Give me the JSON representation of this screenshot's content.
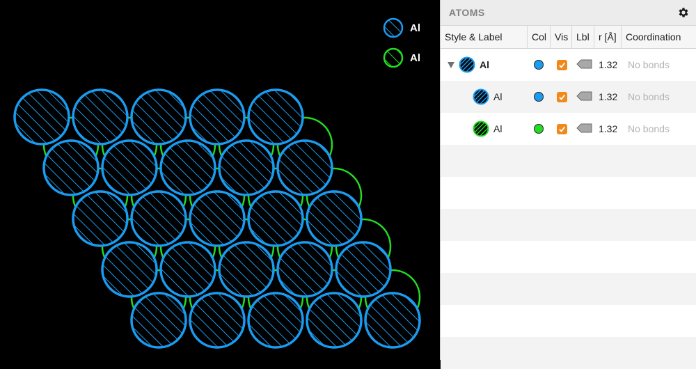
{
  "viewport": {
    "legend": [
      {
        "label": "Al",
        "color": "#1a9cf0"
      },
      {
        "label": "Al",
        "color": "#22dd22"
      }
    ],
    "atom_color": "#1a9cf0",
    "bond_color": "#22dd22",
    "lattice": {
      "rows": 5,
      "cols": 5
    }
  },
  "panel": {
    "title": "ATOMS",
    "gear_icon": "gear-icon",
    "columns": [
      "Style & Label",
      "Col",
      "Vis",
      "Lbl",
      "r [Å]",
      "Coordination"
    ],
    "rows": [
      {
        "label": "Al",
        "group": true,
        "color": "#1a9cf0",
        "icon_color": "#1a9cf0",
        "visible": true,
        "radius": "1.32",
        "coordination": "No bonds"
      },
      {
        "label": "Al",
        "group": false,
        "color": "#1a9cf0",
        "icon_color": "#1a9cf0",
        "visible": true,
        "radius": "1.32",
        "coordination": "No bonds"
      },
      {
        "label": "Al",
        "group": false,
        "color": "#22dd22",
        "icon_color": "#22dd22",
        "visible": true,
        "radius": "1.32",
        "coordination": "No bonds"
      }
    ],
    "accent_checkbox": "#ef8a1a"
  }
}
